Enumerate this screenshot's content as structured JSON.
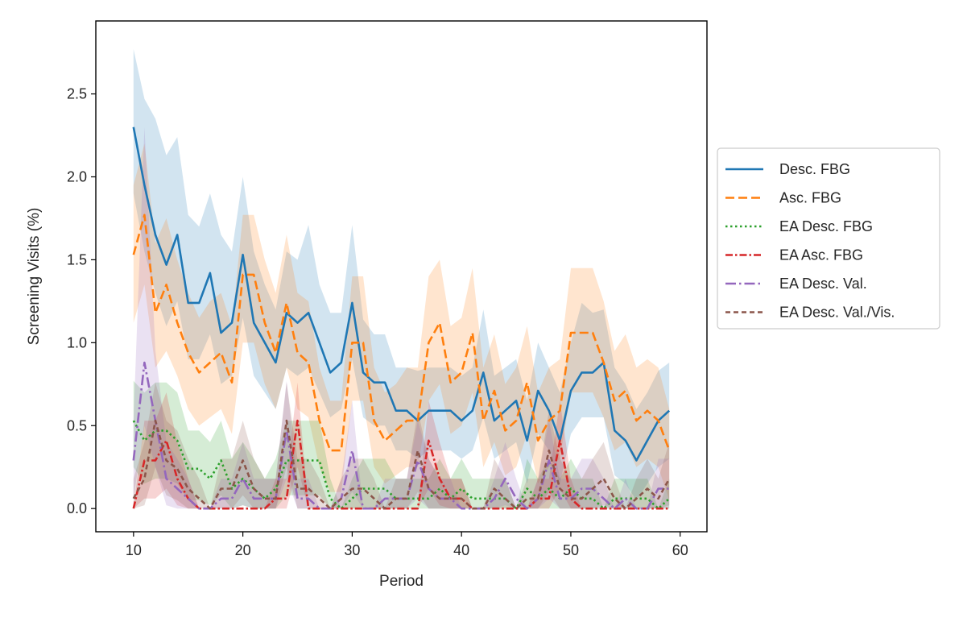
{
  "chart_data": {
    "type": "line",
    "title": "",
    "xlabel": "Period",
    "ylabel": "Screening Visits (%)",
    "xlim": [
      6.55,
      62.45
    ],
    "ylim": [
      -0.14,
      2.94
    ],
    "xticks": [
      10,
      20,
      30,
      40,
      50,
      60
    ],
    "yticks": [
      0.0,
      0.5,
      1.0,
      1.5,
      2.0,
      2.5
    ],
    "xtick_labels": [
      "10",
      "20",
      "30",
      "40",
      "50",
      "60"
    ],
    "ytick_labels": [
      "0.0",
      "0.5",
      "1.0",
      "1.5",
      "2.0",
      "2.5"
    ],
    "grid": false,
    "legend_position": "outside right",
    "x": [
      10,
      11,
      12,
      13,
      14,
      15,
      16,
      17,
      18,
      19,
      20,
      21,
      22,
      23,
      24,
      25,
      26,
      27,
      28,
      29,
      30,
      31,
      32,
      33,
      34,
      35,
      36,
      37,
      38,
      39,
      40,
      41,
      42,
      43,
      44,
      45,
      46,
      47,
      48,
      49,
      50,
      51,
      52,
      53,
      54,
      55,
      56,
      57,
      58,
      59
    ],
    "series": [
      {
        "name": "Desc. FBG",
        "color": "#1f77b4",
        "dash": "solid",
        "values": [
          2.3,
          1.95,
          1.65,
          1.47,
          1.65,
          1.24,
          1.24,
          1.42,
          1.06,
          1.12,
          1.53,
          1.12,
          1.0,
          0.88,
          1.18,
          1.12,
          1.18,
          1.0,
          0.82,
          0.88,
          1.24,
          0.82,
          0.76,
          0.76,
          0.59,
          0.59,
          0.53,
          0.59,
          0.59,
          0.59,
          0.53,
          0.59,
          0.82,
          0.53,
          0.59,
          0.65,
          0.41,
          0.71,
          0.59,
          0.41,
          0.71,
          0.82,
          0.82,
          0.88,
          0.47,
          0.41,
          0.29,
          0.41,
          0.53,
          0.59
        ],
        "lower": [
          1.9,
          1.55,
          1.3,
          1.1,
          1.25,
          0.9,
          0.9,
          1.05,
          0.75,
          0.8,
          1.15,
          0.8,
          0.7,
          0.6,
          0.85,
          0.8,
          0.85,
          0.7,
          0.55,
          0.6,
          0.9,
          0.55,
          0.5,
          0.5,
          0.35,
          0.35,
          0.3,
          0.35,
          0.35,
          0.35,
          0.3,
          0.35,
          0.55,
          0.3,
          0.35,
          0.4,
          0.15,
          0.45,
          0.35,
          0.15,
          0.45,
          0.55,
          0.55,
          0.55,
          0.2,
          0.15,
          0.05,
          0.15,
          0.25,
          0.3
        ],
        "upper": [
          2.77,
          2.47,
          2.35,
          2.13,
          2.24,
          1.77,
          1.7,
          1.9,
          1.65,
          1.55,
          2.0,
          1.55,
          1.35,
          1.2,
          1.55,
          1.5,
          1.71,
          1.35,
          1.18,
          1.18,
          1.71,
          1.14,
          1.05,
          1.05,
          0.85,
          0.85,
          0.83,
          0.85,
          0.85,
          0.85,
          0.8,
          0.85,
          1.2,
          0.8,
          0.85,
          0.9,
          0.65,
          1.0,
          0.85,
          0.7,
          1.0,
          1.24,
          1.18,
          1.2,
          0.85,
          0.75,
          0.6,
          0.7,
          0.83,
          0.88
        ]
      },
      {
        "name": "Asc. FBG",
        "color": "#ff7f0e",
        "dash": "dashed",
        "values": [
          1.53,
          1.77,
          1.18,
          1.35,
          1.12,
          0.94,
          0.82,
          0.88,
          0.94,
          0.76,
          1.41,
          1.41,
          1.12,
          0.94,
          1.24,
          0.94,
          0.88,
          0.53,
          0.35,
          0.35,
          1.0,
          1.0,
          0.53,
          0.41,
          0.47,
          0.53,
          0.53,
          1.0,
          1.12,
          0.76,
          0.82,
          1.06,
          0.53,
          0.71,
          0.47,
          0.53,
          0.76,
          0.41,
          0.53,
          0.59,
          1.06,
          1.06,
          1.06,
          0.88,
          0.65,
          0.71,
          0.53,
          0.59,
          0.53,
          0.35
        ],
        "lower": [
          1.12,
          1.35,
          0.85,
          0.95,
          0.8,
          0.6,
          0.5,
          0.55,
          0.6,
          0.45,
          1.0,
          1.0,
          0.75,
          0.6,
          0.85,
          0.6,
          0.55,
          0.25,
          0.1,
          0.1,
          0.65,
          0.65,
          0.25,
          0.15,
          0.2,
          0.25,
          0.25,
          0.65,
          0.75,
          0.45,
          0.5,
          0.7,
          0.25,
          0.4,
          0.2,
          0.25,
          0.45,
          0.15,
          0.25,
          0.3,
          0.7,
          0.7,
          0.7,
          0.55,
          0.35,
          0.4,
          0.25,
          0.3,
          0.25,
          0.05
        ],
        "upper": [
          1.95,
          2.2,
          1.6,
          1.75,
          1.5,
          1.3,
          1.15,
          1.25,
          1.3,
          1.1,
          1.77,
          1.77,
          1.5,
          1.3,
          1.65,
          1.3,
          1.25,
          0.85,
          0.65,
          0.65,
          1.4,
          1.4,
          0.85,
          0.7,
          0.75,
          0.85,
          0.85,
          1.4,
          1.5,
          1.1,
          1.15,
          1.45,
          0.85,
          1.05,
          0.75,
          0.85,
          1.1,
          0.7,
          0.85,
          0.9,
          1.45,
          1.45,
          1.45,
          1.25,
          0.95,
          1.05,
          0.85,
          0.9,
          0.85,
          0.6
        ]
      },
      {
        "name": "EA Desc. FBG",
        "color": "#2ca02c",
        "dash": "dotted",
        "values": [
          0.53,
          0.41,
          0.47,
          0.47,
          0.41,
          0.24,
          0.24,
          0.18,
          0.29,
          0.12,
          0.18,
          0.12,
          0.06,
          0.12,
          0.29,
          0.29,
          0.29,
          0.29,
          0.06,
          0.0,
          0.06,
          0.12,
          0.12,
          0.12,
          0.06,
          0.06,
          0.06,
          0.06,
          0.12,
          0.06,
          0.12,
          0.06,
          0.06,
          0.06,
          0.06,
          0.0,
          0.12,
          0.06,
          0.12,
          0.06,
          0.12,
          0.06,
          0.06,
          0.0,
          0.06,
          0.06,
          0.06,
          0.06,
          0.0,
          0.06
        ],
        "lower": [
          0.25,
          0.15,
          0.18,
          0.18,
          0.15,
          0.05,
          0.05,
          0.02,
          0.08,
          0.0,
          0.02,
          0.0,
          0.0,
          0.0,
          0.08,
          0.08,
          0.08,
          0.08,
          0.0,
          0.0,
          0.0,
          0.0,
          0.0,
          0.0,
          0.0,
          0.0,
          0.0,
          0.0,
          0.0,
          0.0,
          0.0,
          0.0,
          0.0,
          0.0,
          0.0,
          0.0,
          0.0,
          0.0,
          0.0,
          0.0,
          0.0,
          0.0,
          0.0,
          0.0,
          0.0,
          0.0,
          0.0,
          0.0,
          0.0,
          0.0
        ],
        "upper": [
          0.77,
          0.7,
          0.76,
          0.76,
          0.7,
          0.47,
          0.47,
          0.4,
          0.53,
          0.3,
          0.4,
          0.3,
          0.18,
          0.3,
          0.53,
          0.53,
          0.53,
          0.53,
          0.18,
          0.0,
          0.18,
          0.3,
          0.3,
          0.3,
          0.18,
          0.18,
          0.18,
          0.18,
          0.3,
          0.18,
          0.3,
          0.18,
          0.18,
          0.18,
          0.18,
          0.0,
          0.3,
          0.18,
          0.3,
          0.18,
          0.3,
          0.18,
          0.18,
          0.0,
          0.18,
          0.18,
          0.18,
          0.18,
          0.0,
          0.18
        ]
      },
      {
        "name": "EA Asc. FBG",
        "color": "#d62728",
        "dash": "dashdot-dense",
        "values": [
          0.0,
          0.29,
          0.29,
          0.41,
          0.18,
          0.06,
          0.0,
          0.0,
          0.0,
          0.0,
          0.0,
          0.0,
          0.0,
          0.06,
          0.06,
          0.53,
          0.0,
          0.0,
          0.0,
          0.0,
          0.0,
          0.0,
          0.0,
          0.0,
          0.0,
          0.0,
          0.0,
          0.41,
          0.18,
          0.06,
          0.06,
          0.0,
          0.0,
          0.0,
          0.0,
          0.0,
          0.0,
          0.06,
          0.06,
          0.41,
          0.06,
          0.0,
          0.0,
          0.0,
          0.0,
          0.0,
          0.0,
          0.0,
          0.0,
          0.0
        ],
        "lower": [
          0.0,
          0.06,
          0.06,
          0.12,
          0.02,
          0.0,
          0.0,
          0.0,
          0.0,
          0.0,
          0.0,
          0.0,
          0.0,
          0.0,
          0.0,
          0.25,
          0.0,
          0.0,
          0.0,
          0.0,
          0.0,
          0.0,
          0.0,
          0.0,
          0.0,
          0.0,
          0.0,
          0.12,
          0.02,
          0.0,
          0.0,
          0.0,
          0.0,
          0.0,
          0.0,
          0.0,
          0.0,
          0.0,
          0.0,
          0.12,
          0.0,
          0.0,
          0.0,
          0.0,
          0.0,
          0.0,
          0.0,
          0.0,
          0.0,
          0.0
        ],
        "upper": [
          0.0,
          0.53,
          0.53,
          0.7,
          0.4,
          0.18,
          0.0,
          0.0,
          0.0,
          0.0,
          0.0,
          0.0,
          0.0,
          0.18,
          0.18,
          0.76,
          0.0,
          0.0,
          0.0,
          0.0,
          0.0,
          0.0,
          0.0,
          0.0,
          0.0,
          0.0,
          0.0,
          0.65,
          0.4,
          0.18,
          0.18,
          0.0,
          0.0,
          0.0,
          0.0,
          0.0,
          0.0,
          0.18,
          0.18,
          0.65,
          0.18,
          0.0,
          0.0,
          0.0,
          0.0,
          0.0,
          0.0,
          0.0,
          0.0,
          0.0
        ]
      },
      {
        "name": "EA Desc. Val.",
        "color": "#9467bd",
        "dash": "dashdot",
        "values": [
          0.29,
          0.88,
          0.53,
          0.18,
          0.12,
          0.06,
          0.0,
          0.0,
          0.06,
          0.06,
          0.18,
          0.06,
          0.06,
          0.06,
          0.47,
          0.06,
          0.06,
          0.0,
          0.0,
          0.06,
          0.35,
          0.0,
          0.0,
          0.06,
          0.06,
          0.06,
          0.29,
          0.12,
          0.06,
          0.06,
          0.0,
          0.0,
          0.0,
          0.06,
          0.18,
          0.06,
          0.0,
          0.06,
          0.29,
          0.06,
          0.06,
          0.12,
          0.12,
          0.06,
          0.0,
          0.06,
          0.0,
          0.0,
          0.12,
          0.12
        ],
        "lower": [
          0.06,
          0.5,
          0.25,
          0.02,
          0.0,
          0.0,
          0.0,
          0.0,
          0.0,
          0.0,
          0.02,
          0.0,
          0.0,
          0.0,
          0.18,
          0.0,
          0.0,
          0.0,
          0.0,
          0.0,
          0.1,
          0.0,
          0.0,
          0.0,
          0.0,
          0.0,
          0.06,
          0.0,
          0.0,
          0.0,
          0.0,
          0.0,
          0.0,
          0.0,
          0.02,
          0.0,
          0.0,
          0.0,
          0.06,
          0.0,
          0.0,
          0.0,
          0.0,
          0.0,
          0.0,
          0.0,
          0.0,
          0.0,
          0.0,
          0.0
        ],
        "upper": [
          0.53,
          2.3,
          0.95,
          0.4,
          0.3,
          0.18,
          0.0,
          0.0,
          0.18,
          0.18,
          0.4,
          0.18,
          0.18,
          0.18,
          0.77,
          0.18,
          0.18,
          0.0,
          0.0,
          0.18,
          0.65,
          0.0,
          0.0,
          0.18,
          0.18,
          0.18,
          0.53,
          0.3,
          0.18,
          0.18,
          0.0,
          0.0,
          0.0,
          0.18,
          0.4,
          0.18,
          0.0,
          0.18,
          0.53,
          0.18,
          0.18,
          0.3,
          0.3,
          0.18,
          0.0,
          0.18,
          0.0,
          0.0,
          0.3,
          0.3
        ]
      },
      {
        "name": "EA Desc. Val./Vis.",
        "color": "#8c564b",
        "dash": "dashed-short",
        "values": [
          0.06,
          0.18,
          0.53,
          0.29,
          0.24,
          0.12,
          0.06,
          0.0,
          0.12,
          0.12,
          0.29,
          0.12,
          0.06,
          0.06,
          0.53,
          0.12,
          0.12,
          0.06,
          0.0,
          0.06,
          0.12,
          0.12,
          0.06,
          0.0,
          0.06,
          0.06,
          0.35,
          0.12,
          0.06,
          0.06,
          0.06,
          0.0,
          0.0,
          0.12,
          0.06,
          0.0,
          0.06,
          0.06,
          0.35,
          0.12,
          0.06,
          0.06,
          0.12,
          0.18,
          0.06,
          0.0,
          0.06,
          0.12,
          0.06,
          0.18
        ],
        "lower": [
          0.0,
          0.02,
          0.25,
          0.08,
          0.05,
          0.0,
          0.0,
          0.0,
          0.0,
          0.0,
          0.08,
          0.0,
          0.0,
          0.0,
          0.25,
          0.0,
          0.0,
          0.0,
          0.0,
          0.0,
          0.0,
          0.0,
          0.0,
          0.0,
          0.0,
          0.0,
          0.1,
          0.0,
          0.0,
          0.0,
          0.0,
          0.0,
          0.0,
          0.0,
          0.0,
          0.0,
          0.0,
          0.0,
          0.1,
          0.0,
          0.0,
          0.0,
          0.0,
          0.02,
          0.0,
          0.0,
          0.0,
          0.0,
          0.0,
          0.02
        ],
        "upper": [
          0.18,
          0.4,
          0.76,
          0.53,
          0.47,
          0.3,
          0.18,
          0.0,
          0.3,
          0.3,
          0.53,
          0.3,
          0.18,
          0.18,
          0.76,
          0.3,
          0.3,
          0.18,
          0.0,
          0.18,
          0.3,
          0.3,
          0.18,
          0.0,
          0.18,
          0.18,
          0.59,
          0.3,
          0.18,
          0.18,
          0.18,
          0.0,
          0.0,
          0.3,
          0.18,
          0.0,
          0.18,
          0.18,
          0.59,
          0.3,
          0.18,
          0.18,
          0.3,
          0.4,
          0.18,
          0.0,
          0.18,
          0.3,
          0.18,
          0.4
        ]
      }
    ]
  }
}
